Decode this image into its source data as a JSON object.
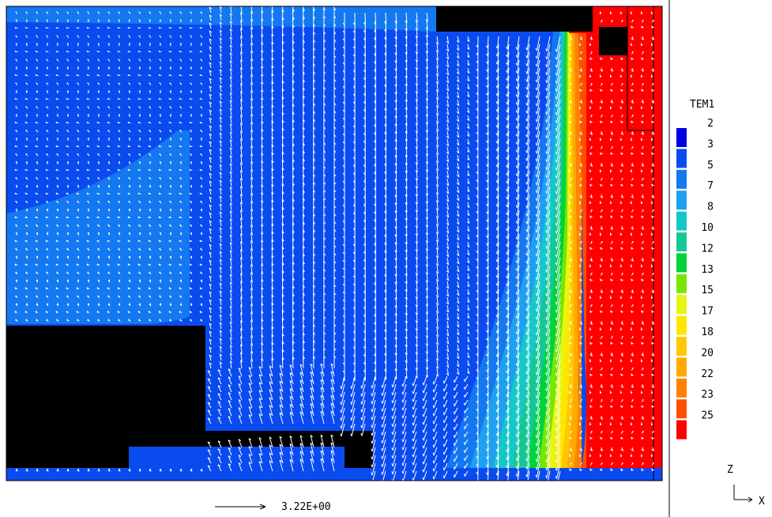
{
  "chart_data": {
    "type": "heatmap",
    "subtype": "temperature contour with velocity vector overlay",
    "legend": {
      "title": "TEM1",
      "placement": "right",
      "levels": [
        {
          "label": "2",
          "color": "#0000e6"
        },
        {
          "label": "3",
          "color": "#0a4bf0"
        },
        {
          "label": "5",
          "color": "#1478f0"
        },
        {
          "label": "7",
          "color": "#1ea0f0"
        },
        {
          "label": "8",
          "color": "#14c8c8"
        },
        {
          "label": "10",
          "color": "#14c896"
        },
        {
          "label": "12",
          "color": "#00d23c"
        },
        {
          "label": "13",
          "color": "#78e600"
        },
        {
          "label": "15",
          "color": "#e6f514"
        },
        {
          "label": "17",
          "color": "#ffe600"
        },
        {
          "label": "18",
          "color": "#ffc800"
        },
        {
          "label": "20",
          "color": "#ffaa00"
        },
        {
          "label": "22",
          "color": "#ff8200"
        },
        {
          "label": "23",
          "color": "#ff5000"
        },
        {
          "label": "25",
          "color": "#ff0000"
        }
      ]
    },
    "vector_scale": {
      "label": "3.22E+00"
    },
    "axes_triad": {
      "vertical": "Z",
      "horizontal": "X"
    }
  }
}
